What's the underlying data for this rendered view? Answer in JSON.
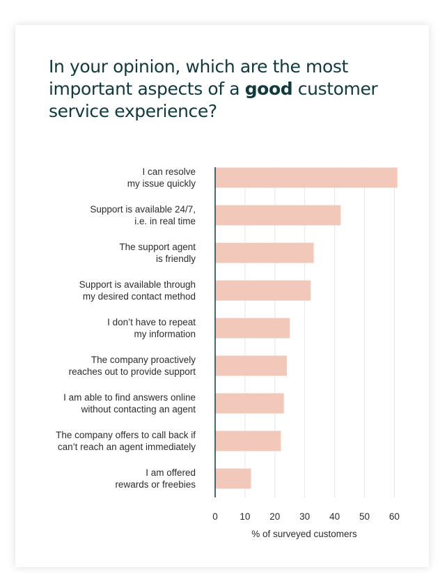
{
  "title": {
    "before": "In your opinion, which are the most important aspects of a ",
    "emphasis": "good",
    "after": " customer service experience?"
  },
  "colors": {
    "bar": "#f2c8bb",
    "axis": "#0f3a3e",
    "grid": "#e6e6e6",
    "title": "#0f3a3e"
  },
  "chart_data": {
    "type": "bar",
    "orientation": "horizontal",
    "categories": [
      [
        "I can resolve",
        "my issue quickly"
      ],
      [
        "Support is available 24/7,",
        "i.e. in real time"
      ],
      [
        "The support agent",
        "is friendly"
      ],
      [
        "Support is available through",
        "my desired contact method"
      ],
      [
        "I don’t have to repeat",
        "my information"
      ],
      [
        "The company proactively",
        "reaches out to provide support"
      ],
      [
        "I am able to find answers online",
        "without contacting an agent"
      ],
      [
        "The company offers to call back if",
        "can’t reach an agent immediately"
      ],
      [
        "I am offered",
        "rewards or freebies"
      ]
    ],
    "values": [
      61,
      42,
      33,
      32,
      25,
      24,
      23,
      22,
      12
    ],
    "xlabel": "% of surveyed customers",
    "xlim": [
      0,
      64
    ],
    "xticks": [
      0,
      10,
      20,
      30,
      40,
      50,
      60
    ],
    "grid": true
  }
}
